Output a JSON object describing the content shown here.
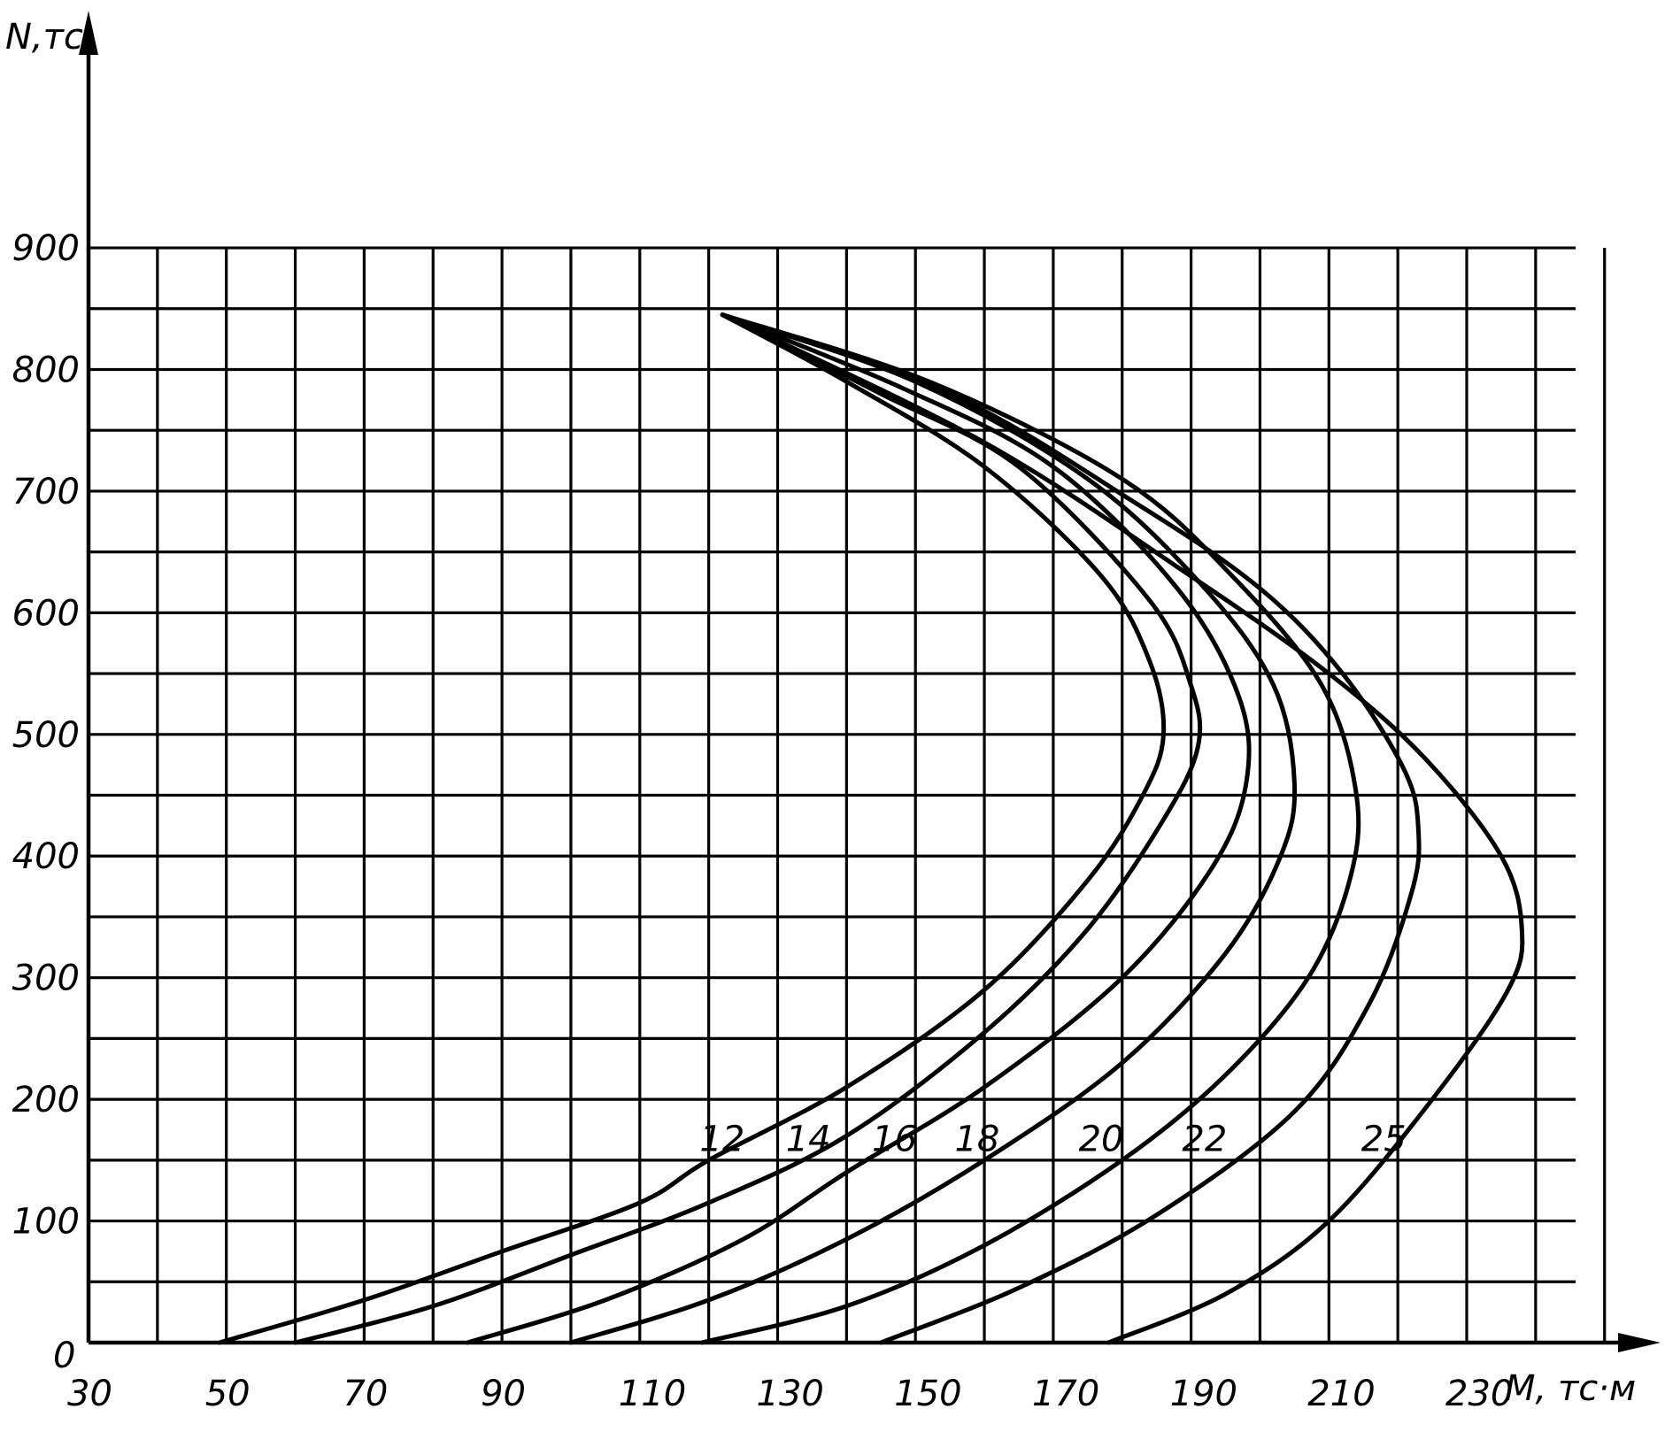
{
  "chart_data": {
    "type": "line",
    "xlabel": "M, тс·м",
    "ylabel": "N,тс",
    "xlim": [
      30,
      250
    ],
    "ylim": [
      0,
      900
    ],
    "x_ticks": [
      30,
      50,
      70,
      90,
      110,
      130,
      150,
      170,
      190,
      210,
      230
    ],
    "y_ticks": [
      0,
      100,
      200,
      300,
      400,
      500,
      600,
      700,
      800,
      900
    ],
    "origin_label": "0",
    "grid": true,
    "series": [
      {
        "name": "12",
        "points": [
          [
            49,
            0
          ],
          [
            70,
            35
          ],
          [
            90,
            75
          ],
          [
            110,
            115
          ],
          [
            120,
            150
          ],
          [
            140,
            210
          ],
          [
            160,
            290
          ],
          [
            175,
            380
          ],
          [
            183,
            450
          ],
          [
            186,
            500
          ],
          [
            184,
            560
          ],
          [
            177,
            630
          ],
          [
            160,
            720
          ],
          [
            140,
            790
          ],
          [
            122,
            845
          ]
        ]
      },
      {
        "name": "14",
        "points": [
          [
            60,
            0
          ],
          [
            80,
            30
          ],
          [
            100,
            72
          ],
          [
            120,
            115
          ],
          [
            140,
            170
          ],
          [
            160,
            255
          ],
          [
            175,
            340
          ],
          [
            186,
            430
          ],
          [
            191,
            490
          ],
          [
            190,
            540
          ],
          [
            184,
            610
          ],
          [
            165,
            720
          ],
          [
            145,
            780
          ],
          [
            122,
            845
          ]
        ]
      },
      {
        "name": "16",
        "points": [
          [
            85,
            0
          ],
          [
            105,
            35
          ],
          [
            125,
            85
          ],
          [
            140,
            140
          ],
          [
            160,
            210
          ],
          [
            180,
            300
          ],
          [
            193,
            390
          ],
          [
            198,
            460
          ],
          [
            197,
            530
          ],
          [
            188,
            620
          ],
          [
            170,
            720
          ],
          [
            148,
            785
          ],
          [
            122,
            845
          ]
        ]
      },
      {
        "name": "18",
        "points": [
          [
            100,
            0
          ],
          [
            120,
            35
          ],
          [
            140,
            85
          ],
          [
            160,
            150
          ],
          [
            180,
            230
          ],
          [
            195,
            320
          ],
          [
            203,
            400
          ],
          [
            205,
            460
          ],
          [
            202,
            540
          ],
          [
            192,
            620
          ],
          [
            175,
            710
          ],
          [
            150,
            790
          ],
          [
            122,
            845
          ]
        ]
      },
      {
        "name": "20",
        "points": [
          [
            119,
            0
          ],
          [
            140,
            30
          ],
          [
            160,
            80
          ],
          [
            180,
            150
          ],
          [
            195,
            220
          ],
          [
            207,
            300
          ],
          [
            213,
            380
          ],
          [
            214,
            450
          ],
          [
            209,
            540
          ],
          [
            196,
            630
          ],
          [
            180,
            710
          ],
          [
            152,
            790
          ],
          [
            122,
            845
          ]
        ]
      },
      {
        "name": "22",
        "points": [
          [
            145,
            0
          ],
          [
            165,
            45
          ],
          [
            185,
            105
          ],
          [
            205,
            190
          ],
          [
            216,
            280
          ],
          [
            222,
            370
          ],
          [
            223,
            420
          ],
          [
            221,
            470
          ],
          [
            212,
            550
          ],
          [
            200,
            620
          ],
          [
            182,
            690
          ],
          [
            155,
            780
          ],
          [
            122,
            845
          ]
        ]
      },
      {
        "name": "25",
        "points": [
          [
            178,
            0
          ],
          [
            195,
            40
          ],
          [
            210,
            100
          ],
          [
            225,
            200
          ],
          [
            236,
            290
          ],
          [
            238,
            340
          ],
          [
            235,
            400
          ],
          [
            224,
            480
          ],
          [
            210,
            550
          ],
          [
            190,
            630
          ],
          [
            160,
            740
          ],
          [
            122,
            845
          ]
        ]
      }
    ],
    "curve_labels": [
      {
        "text": "12",
        "x": 121,
        "y": 153
      },
      {
        "text": "14",
        "x": 133.5,
        "y": 153
      },
      {
        "text": "16",
        "x": 146,
        "y": 153
      },
      {
        "text": "18",
        "x": 158,
        "y": 153
      },
      {
        "text": "20",
        "x": 176,
        "y": 153
      },
      {
        "text": "22",
        "x": 191,
        "y": 153
      },
      {
        "text": "25",
        "x": 217,
        "y": 153
      }
    ]
  }
}
